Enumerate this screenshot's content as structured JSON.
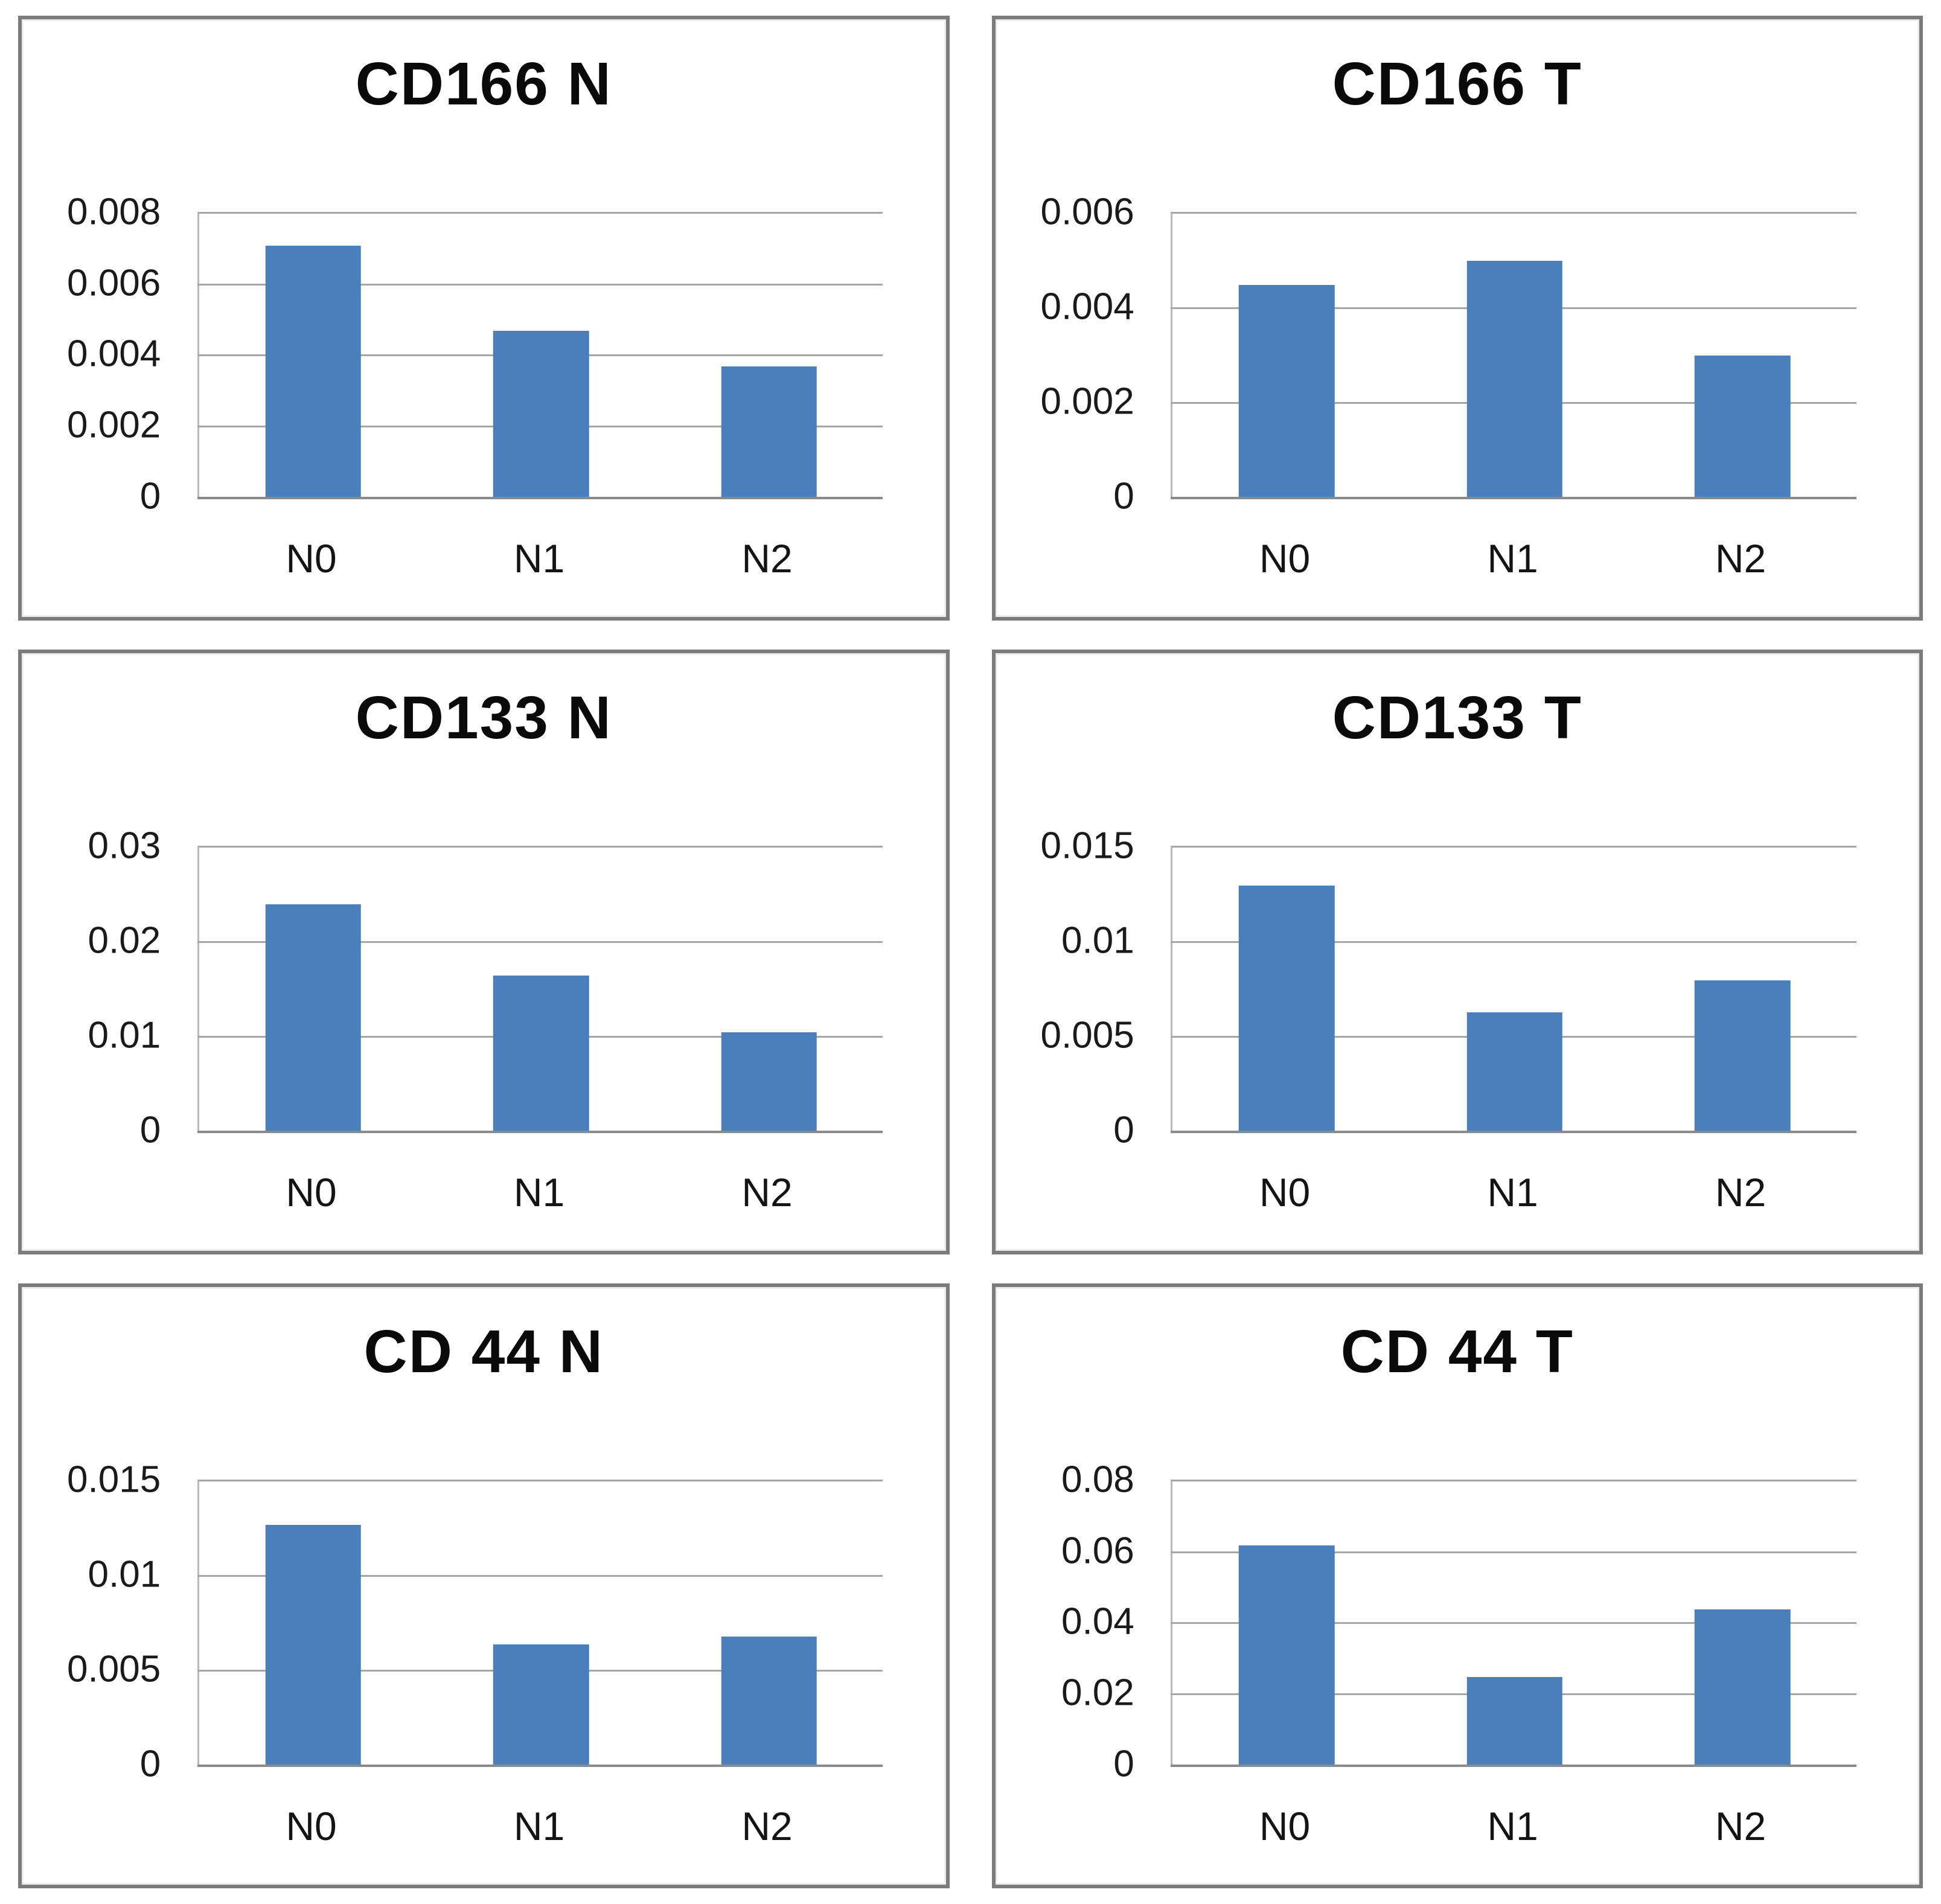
{
  "colors": {
    "bar": "#4a7fbc",
    "gridline": "#a6a6a6",
    "zero_axis": "#8a8a8a",
    "panel_border": "#7b7b7b",
    "title": "#0a0a0a",
    "tick_label": "#1a1a1a"
  },
  "chart_data": [
    {
      "type": "bar",
      "title": "CD166 N",
      "categories": [
        "N0",
        "N1",
        "N2"
      ],
      "values": [
        0.0071,
        0.0047,
        0.0037
      ],
      "xlabel": "",
      "ylabel": "",
      "ylim": [
        0,
        0.008
      ],
      "ymax": 0.008,
      "ytick_labels": [
        "0",
        "0.002",
        "0.004",
        "0.006",
        "0.008"
      ],
      "grid": true,
      "legend": false
    },
    {
      "type": "bar",
      "title": "CD166 T",
      "categories": [
        "N0",
        "N1",
        "N2"
      ],
      "values": [
        0.0045,
        0.005,
        0.003
      ],
      "xlabel": "",
      "ylabel": "",
      "ylim": [
        0,
        0.006
      ],
      "ymax": 0.006,
      "ytick_labels": [
        "0",
        "0.002",
        "0.004",
        "0.006"
      ],
      "grid": true,
      "legend": false
    },
    {
      "type": "bar",
      "title": "CD133 N",
      "categories": [
        "N0",
        "N1",
        "N2"
      ],
      "values": [
        0.024,
        0.0165,
        0.0105
      ],
      "xlabel": "",
      "ylabel": "",
      "ylim": [
        0,
        0.03
      ],
      "ymax": 0.03,
      "ytick_labels": [
        "0",
        "0.01",
        "0.02",
        "0.03"
      ],
      "grid": true,
      "legend": false
    },
    {
      "type": "bar",
      "title": "CD133 T",
      "categories": [
        "N0",
        "N1",
        "N2"
      ],
      "values": [
        0.013,
        0.0063,
        0.008
      ],
      "xlabel": "",
      "ylabel": "",
      "ylim": [
        0,
        0.015
      ],
      "ymax": 0.015,
      "ytick_labels": [
        "0",
        "0.005",
        "0.01",
        "0.015"
      ],
      "grid": true,
      "legend": false
    },
    {
      "type": "bar",
      "title": "CD 44 N",
      "categories": [
        "N0",
        "N1",
        "N2"
      ],
      "values": [
        0.0127,
        0.0064,
        0.0068
      ],
      "xlabel": "",
      "ylabel": "",
      "ylim": [
        0,
        0.015
      ],
      "ymax": 0.015,
      "ytick_labels": [
        "0",
        "0.005",
        "0.01",
        "0.015"
      ],
      "grid": true,
      "legend": false
    },
    {
      "type": "bar",
      "title": "CD 44 T",
      "categories": [
        "N0",
        "N1",
        "N2"
      ],
      "values": [
        0.062,
        0.025,
        0.044
      ],
      "xlabel": "",
      "ylabel": "",
      "ylim": [
        0,
        0.08
      ],
      "ymax": 0.08,
      "ytick_labels": [
        "0",
        "0.02",
        "0.04",
        "0.06",
        "0.08"
      ],
      "grid": true,
      "legend": false
    }
  ]
}
